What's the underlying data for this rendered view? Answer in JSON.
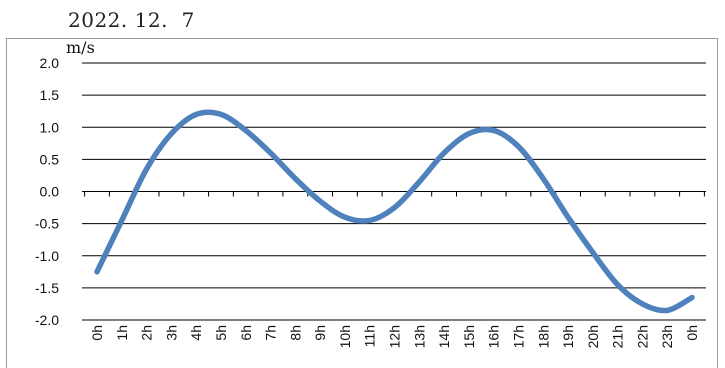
{
  "date_title": "2022. 12.  7",
  "chart_data": {
    "type": "line",
    "title": "2022. 12.  7",
    "ylabel": "m/s",
    "xlabel": "",
    "ylim": [
      -2.0,
      2.0
    ],
    "y_ticks": [
      "2.0",
      "1.5",
      "1.0",
      "0.5",
      "0.0",
      "-0.5",
      "-1.0",
      "-1.5",
      "-2.0"
    ],
    "y_tick_values": [
      2.0,
      1.5,
      1.0,
      0.5,
      0.0,
      -0.5,
      -1.0,
      -1.5,
      -2.0
    ],
    "categories": [
      "0h",
      "1h",
      "2h",
      "3h",
      "4h",
      "5h",
      "6h",
      "7h",
      "8h",
      "9h",
      "10h",
      "11h",
      "12h",
      "13h",
      "14h",
      "15h",
      "16h",
      "17h",
      "18h",
      "19h",
      "20h",
      "21h",
      "22h",
      "23h",
      "0h"
    ],
    "series": [
      {
        "values": [
          -1.25,
          -0.45,
          0.35,
          0.9,
          1.2,
          1.2,
          0.95,
          0.6,
          0.2,
          -0.15,
          -0.4,
          -0.45,
          -0.25,
          0.15,
          0.6,
          0.9,
          0.95,
          0.7,
          0.2,
          -0.4,
          -0.95,
          -1.45,
          -1.75,
          -1.85,
          -1.65
        ],
        "color": "#4f81bd"
      }
    ],
    "grid": "horizontal",
    "legend": "none"
  }
}
